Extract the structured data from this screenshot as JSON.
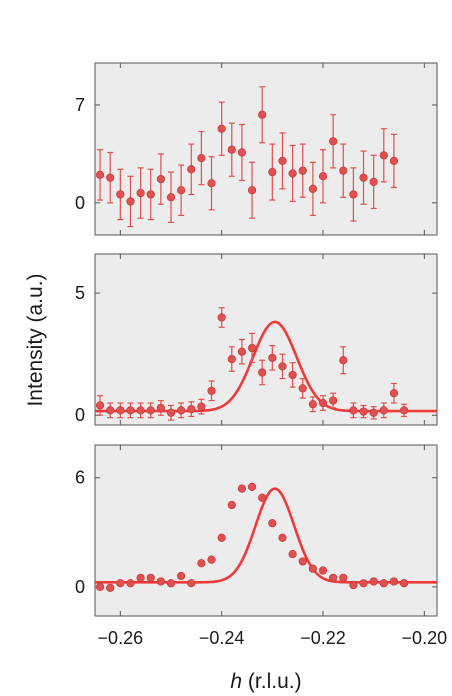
{
  "colors": {
    "data": "#e05050",
    "fit": "#ee3a3a",
    "panel_bg": "#ececec",
    "frame": "#555555"
  },
  "chart_data": {
    "type": "scatter",
    "ylabel": "Intensity (a.u.)",
    "xlabel": {
      "var": "h",
      "unit": " (r.l.u.)"
    },
    "xlim": [
      -0.265,
      -0.1975
    ],
    "xticks": [
      -0.26,
      -0.24,
      -0.22,
      -0.2
    ],
    "xtick_labels": [
      "−0.26",
      "−0.24",
      "−0.22",
      "−0.20"
    ],
    "panels": [
      {
        "ylim": [
          -2.3,
          10.0
        ],
        "yticks": [
          0,
          7
        ],
        "ytick_labels": [
          "0",
          "7"
        ],
        "points": [
          [
            -0.264,
            2.0,
            1.8
          ],
          [
            -0.262,
            1.8,
            1.8
          ],
          [
            -0.26,
            0.6,
            1.8
          ],
          [
            -0.258,
            0.1,
            1.8
          ],
          [
            -0.256,
            0.7,
            1.8
          ],
          [
            -0.254,
            0.6,
            1.8
          ],
          [
            -0.252,
            1.7,
            1.8
          ],
          [
            -0.25,
            0.4,
            1.8
          ],
          [
            -0.248,
            0.9,
            1.8
          ],
          [
            -0.246,
            2.4,
            1.8
          ],
          [
            -0.244,
            3.2,
            1.9
          ],
          [
            -0.242,
            1.4,
            1.9
          ],
          [
            -0.24,
            5.3,
            1.9
          ],
          [
            -0.238,
            3.8,
            1.9
          ],
          [
            -0.236,
            3.6,
            2.0
          ],
          [
            -0.234,
            0.9,
            2.0
          ],
          [
            -0.232,
            6.3,
            2.0
          ],
          [
            -0.23,
            2.2,
            2.0
          ],
          [
            -0.228,
            3.0,
            2.0
          ],
          [
            -0.226,
            2.1,
            2.0
          ],
          [
            -0.224,
            2.3,
            1.9
          ],
          [
            -0.222,
            1.0,
            1.9
          ],
          [
            -0.22,
            1.9,
            1.9
          ],
          [
            -0.218,
            4.4,
            1.9
          ],
          [
            -0.216,
            2.3,
            1.9
          ],
          [
            -0.214,
            0.6,
            1.9
          ],
          [
            -0.212,
            1.8,
            1.9
          ],
          [
            -0.21,
            1.5,
            1.9
          ],
          [
            -0.208,
            3.4,
            1.9
          ],
          [
            -0.206,
            3.0,
            1.9
          ]
        ],
        "fit": null
      },
      {
        "ylim": [
          -0.4,
          6.6
        ],
        "yticks": [
          0,
          5
        ],
        "ytick_labels": [
          "0",
          "5"
        ],
        "points": [
          [
            -0.264,
            0.4,
            0.4
          ],
          [
            -0.262,
            0.2,
            0.3
          ],
          [
            -0.26,
            0.2,
            0.3
          ],
          [
            -0.258,
            0.2,
            0.3
          ],
          [
            -0.256,
            0.2,
            0.3
          ],
          [
            -0.254,
            0.2,
            0.3
          ],
          [
            -0.252,
            0.3,
            0.3
          ],
          [
            -0.25,
            0.1,
            0.3
          ],
          [
            -0.248,
            0.2,
            0.3
          ],
          [
            -0.246,
            0.25,
            0.3
          ],
          [
            -0.244,
            0.35,
            0.3
          ],
          [
            -0.242,
            1.0,
            0.4
          ],
          [
            -0.24,
            4.0,
            0.4
          ],
          [
            -0.238,
            2.3,
            0.5
          ],
          [
            -0.236,
            2.6,
            0.5
          ],
          [
            -0.234,
            2.75,
            0.6
          ],
          [
            -0.232,
            1.75,
            0.5
          ],
          [
            -0.23,
            2.35,
            0.5
          ],
          [
            -0.228,
            2.0,
            0.5
          ],
          [
            -0.226,
            1.65,
            0.5
          ],
          [
            -0.224,
            1.1,
            0.4
          ],
          [
            -0.222,
            0.45,
            0.3
          ],
          [
            -0.22,
            0.5,
            0.3
          ],
          [
            -0.218,
            0.6,
            0.3
          ],
          [
            -0.216,
            2.25,
            0.55
          ],
          [
            -0.214,
            0.2,
            0.3
          ],
          [
            -0.212,
            0.15,
            0.25
          ],
          [
            -0.21,
            0.1,
            0.25
          ],
          [
            -0.208,
            0.2,
            0.3
          ],
          [
            -0.206,
            0.9,
            0.4
          ],
          [
            -0.204,
            0.2,
            0.25
          ]
        ],
        "fit": {
          "baseline": 0.17,
          "amplitude": 3.65,
          "center": -0.2295,
          "sigma": 0.0043
        }
      },
      {
        "ylim": [
          -1.6,
          7.8
        ],
        "yticks": [
          0,
          6
        ],
        "ytick_labels": [
          "0",
          "6"
        ],
        "points": [
          [
            -0.264,
            0.0
          ],
          [
            -0.262,
            -0.05
          ],
          [
            -0.26,
            0.2
          ],
          [
            -0.258,
            0.2
          ],
          [
            -0.256,
            0.5
          ],
          [
            -0.254,
            0.5
          ],
          [
            -0.252,
            0.3
          ],
          [
            -0.25,
            0.2
          ],
          [
            -0.248,
            0.6
          ],
          [
            -0.246,
            0.2
          ],
          [
            -0.244,
            1.3
          ],
          [
            -0.242,
            1.5
          ],
          [
            -0.24,
            2.7
          ],
          [
            -0.238,
            4.5
          ],
          [
            -0.236,
            5.4
          ],
          [
            -0.234,
            5.5
          ],
          [
            -0.232,
            4.9
          ],
          [
            -0.23,
            3.5
          ],
          [
            -0.228,
            2.7
          ],
          [
            -0.226,
            1.8
          ],
          [
            -0.224,
            1.4
          ],
          [
            -0.222,
            1.0
          ],
          [
            -0.22,
            0.9
          ],
          [
            -0.218,
            0.5
          ],
          [
            -0.216,
            0.5
          ],
          [
            -0.214,
            0.1
          ],
          [
            -0.212,
            0.2
          ],
          [
            -0.21,
            0.3
          ],
          [
            -0.208,
            0.2
          ],
          [
            -0.206,
            0.3
          ],
          [
            -0.204,
            0.2
          ]
        ],
        "fit": {
          "baseline": 0.25,
          "amplitude": 5.15,
          "center": -0.2295,
          "sigma": 0.0038
        }
      }
    ]
  }
}
